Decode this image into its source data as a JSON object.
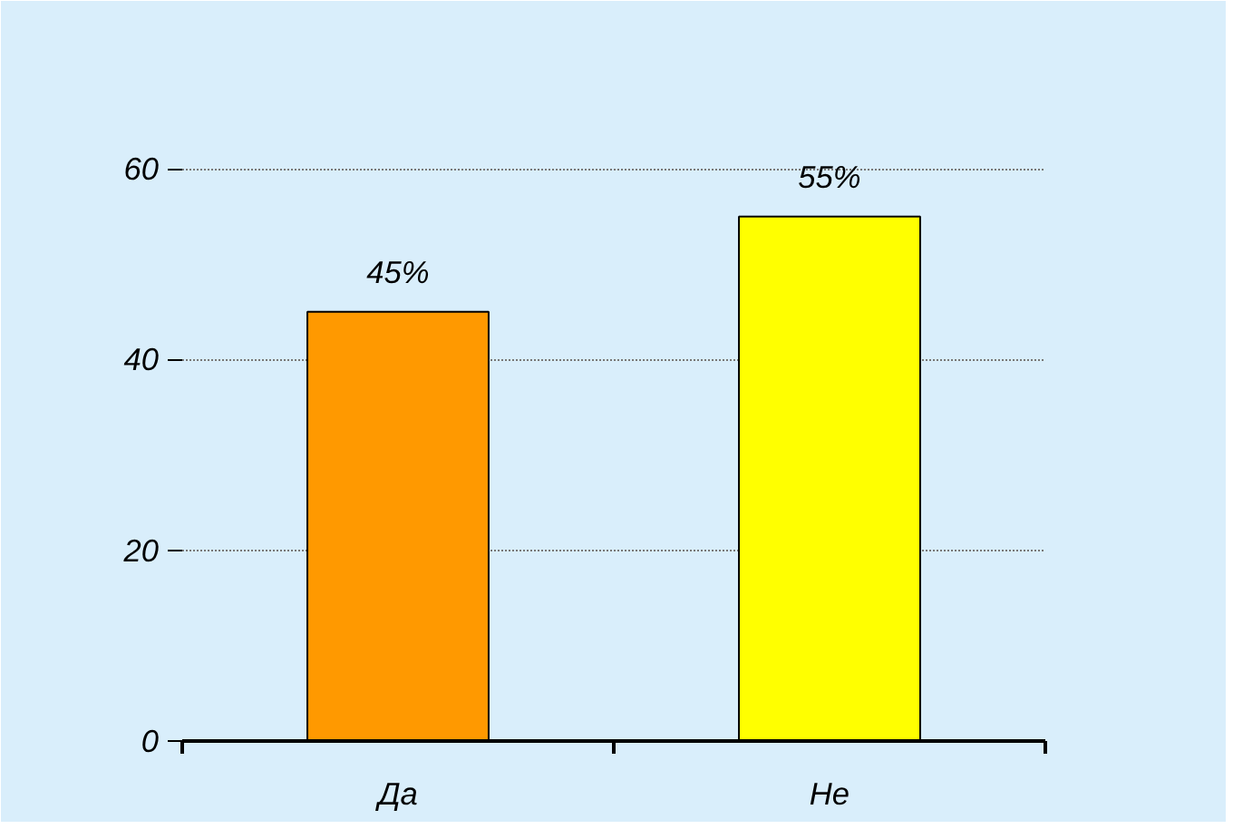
{
  "chart_data": {
    "type": "bar",
    "categories": [
      "Да",
      "Не"
    ],
    "values": [
      45,
      55
    ],
    "colors": [
      "#ff9900",
      "#ffff00"
    ],
    "value_labels": [
      "45%",
      "55%"
    ],
    "ylim": [
      0,
      70
    ],
    "yticks": [
      0,
      20,
      40,
      60
    ],
    "grid": "y"
  }
}
